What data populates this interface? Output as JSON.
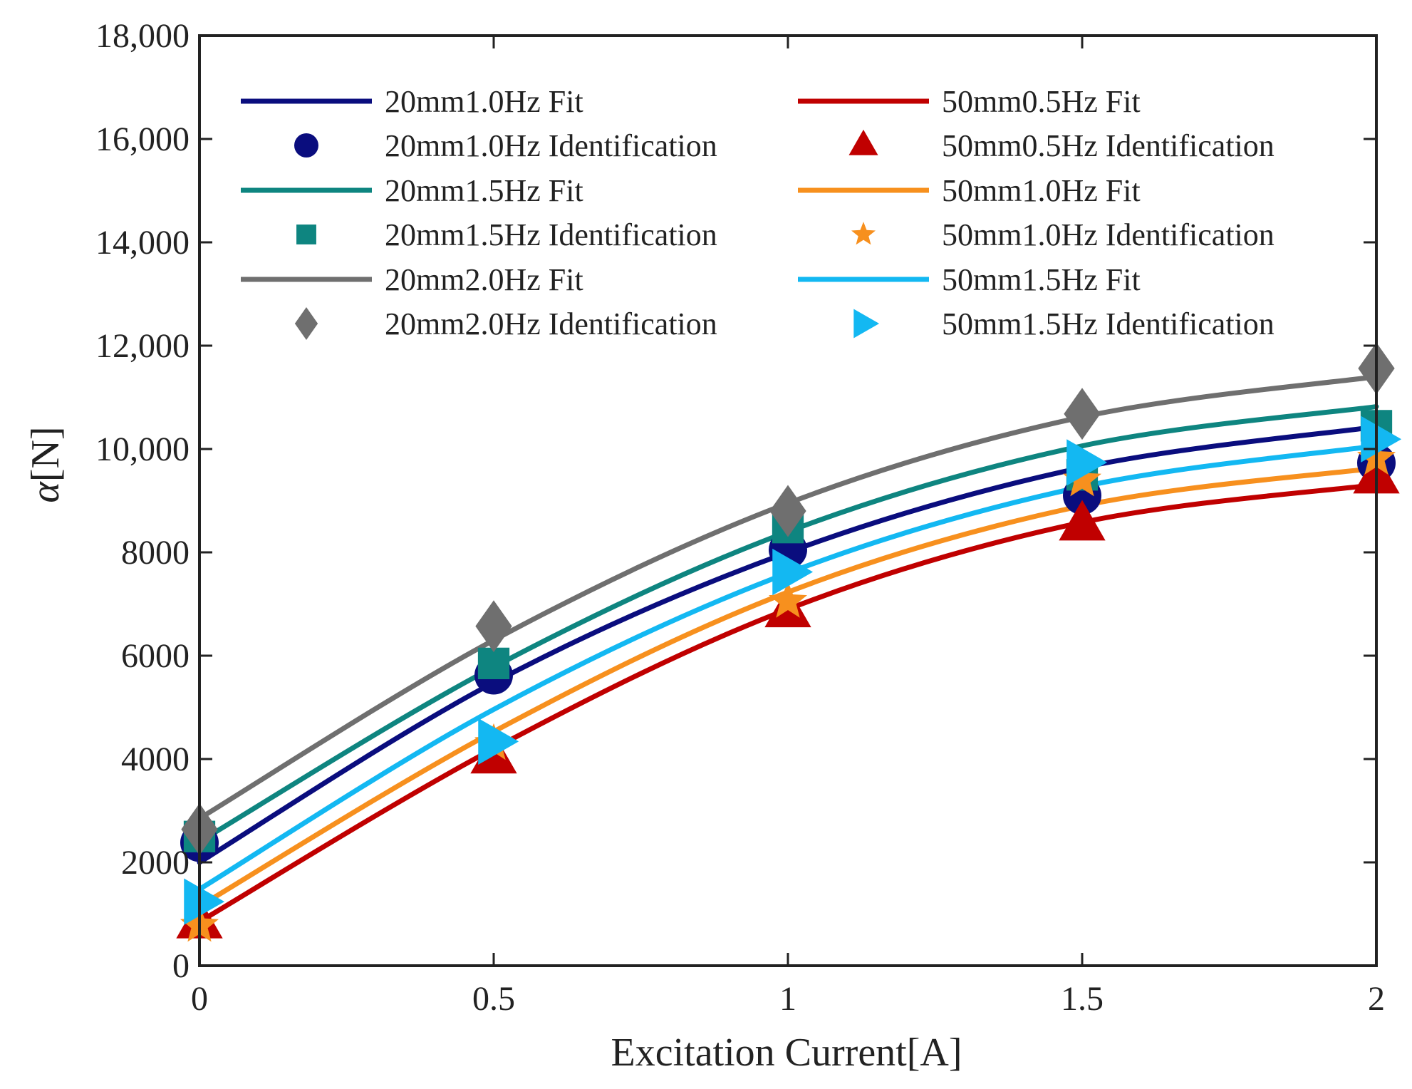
{
  "chart_data": {
    "type": "line",
    "title": "",
    "xlabel": "Excitation Current[A]",
    "ylabel_symbol": "α",
    "ylabel_unit": "[N]",
    "xlim": [
      0,
      2
    ],
    "ylim": [
      0,
      18000
    ],
    "xticks": [
      {
        "value": 0,
        "label": "0"
      },
      {
        "value": 0.5,
        "label": "0.5"
      },
      {
        "value": 1,
        "label": "1"
      },
      {
        "value": 1.5,
        "label": "1.5"
      },
      {
        "value": 2,
        "label": "2"
      }
    ],
    "yticks": [
      {
        "value": 0,
        "label": "0"
      },
      {
        "value": 2000,
        "label": "2000"
      },
      {
        "value": 4000,
        "label": "4000"
      },
      {
        "value": 6000,
        "label": "6000"
      },
      {
        "value": 8000,
        "label": "8000"
      },
      {
        "value": 10000,
        "label": "10,000"
      },
      {
        "value": 12000,
        "label": "12,000"
      },
      {
        "value": 14000,
        "label": "14,000"
      },
      {
        "value": 16000,
        "label": "16,000"
      },
      {
        "value": 18000,
        "label": "18,000"
      }
    ],
    "grid": false,
    "legend_position": "top",
    "series": [
      {
        "key": "s20_10",
        "color": "#0a0d7e",
        "marker": "circle",
        "fit_label": "20mm1.0Hz Fit",
        "ident_label": "20mm1.0Hz Identification",
        "fit": [
          2000,
          5480,
          8000,
          9640,
          10430
        ],
        "ident": {
          "x": [
            0,
            0.5,
            1,
            1.5,
            2
          ],
          "y": [
            2380,
            5620,
            8050,
            9100,
            9730
          ]
        }
      },
      {
        "key": "s20_15",
        "color": "#0e8580",
        "marker": "square",
        "fit_label": "20mm1.5Hz Fit",
        "ident_label": "20mm1.5Hz Identification",
        "fit": [
          2400,
          5780,
          8400,
          10060,
          10820
        ],
        "ident": {
          "x": [
            0,
            0.5,
            1,
            1.5,
            2
          ],
          "y": [
            2500,
            5850,
            8480,
            9500,
            10450
          ]
        }
      },
      {
        "key": "s20_20",
        "color": "#6f6f6f",
        "marker": "diamond",
        "fit_label": "20mm2.0Hz Fit",
        "ident_label": "20mm2.0Hz Identification",
        "fit": [
          2850,
          6300,
          8950,
          10620,
          11400
        ],
        "ident": {
          "x": [
            0,
            0.5,
            1,
            1.5,
            2
          ],
          "y": [
            2640,
            6570,
            8800,
            10680,
            11560
          ]
        }
      },
      {
        "key": "s50_05",
        "color": "#c00000",
        "marker": "triangle-up",
        "fit_label": "50mm0.5Hz Fit",
        "ident_label": "50mm0.5Hz Identification",
        "fit": [
          850,
          4200,
          6900,
          8580,
          9310
        ],
        "ident": {
          "x": [
            0,
            0.5,
            1,
            1.5,
            2
          ],
          "y": [
            830,
            4020,
            6850,
            8530,
            9440
          ]
        }
      },
      {
        "key": "s50_10",
        "color": "#f7901e",
        "marker": "star",
        "fit_label": "50mm1.0Hz Fit",
        "ident_label": "50mm1.0Hz Identification",
        "fit": [
          1150,
          4530,
          7230,
          8900,
          9630
        ],
        "ident": {
          "x": [
            0,
            0.5,
            1,
            1.5,
            2
          ],
          "y": [
            780,
            4300,
            7050,
            9400,
            9820
          ]
        }
      },
      {
        "key": "s50_15",
        "color": "#13b8f2",
        "marker": "triangle-right",
        "fit_label": "50mm1.5Hz Fit",
        "ident_label": "50mm1.5Hz Identification",
        "fit": [
          1480,
          4960,
          7600,
          9270,
          10060
        ],
        "ident": {
          "x": [
            0,
            0.5,
            1,
            1.5,
            2
          ],
          "y": [
            1240,
            4340,
            7620,
            9740,
            10190
          ]
        }
      }
    ]
  }
}
